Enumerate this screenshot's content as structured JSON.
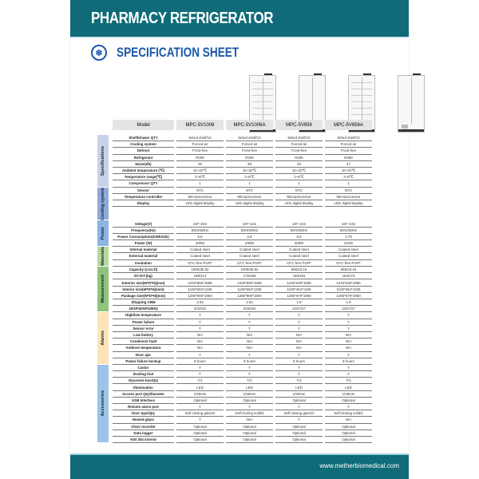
{
  "header": {
    "title": "PHARMACY REFRIGERATOR"
  },
  "subtitle": "SPECIFICATION SHEET",
  "colors": {
    "teal": "#0f6b78",
    "blue": "#1b58a8"
  },
  "product_images": [
    {
      "model": "MPC-5V1006",
      "door": "glass"
    },
    {
      "model": "MPC-5V1006A",
      "door": "solid"
    },
    {
      "model": "MPC-5V656",
      "door": "glass"
    },
    {
      "model": "MPC-5V656A",
      "door": "solid"
    }
  ],
  "table": {
    "model_label": "Model",
    "models": [
      "MPC-5V1006",
      "MPC-5V1006A",
      "MPC-5V656",
      "MPC-5V656A"
    ],
    "groups": [
      {
        "name": "Specifications",
        "color": "#c9d1ea",
        "rows": [
          [
            "Shelf/drawer QTY",
            "Wired shelf/10",
            "Wired shelf/10",
            "Wired shelf/10",
            "Wired shelf/10"
          ],
          [
            "Cooling system",
            "Forced air",
            "Forced air",
            "Forced air",
            "Forced air"
          ],
          [
            "Defrost",
            "Frost-free",
            "Frost-free",
            "Frost-free",
            "Frost-free"
          ],
          [
            "Refrigerant",
            "R290",
            "R290",
            "R290",
            "R290"
          ],
          [
            "Noise(db)",
            "49",
            "48",
            "48",
            "47"
          ],
          [
            "Ambient temperature (℃)",
            "10~32℃",
            "10~32℃",
            "10~32℃",
            "10~32℃"
          ],
          [
            "Temperature range(℃)",
            "2~8℃",
            "2~8℃",
            "2~8℃",
            "2~8℃"
          ],
          [
            "Compressor QTY",
            "1",
            "1",
            "1",
            "1"
          ]
        ]
      },
      {
        "name": "Cooling system",
        "color": "#8fa9d9",
        "rows": [
          [
            "Sensor",
            "NTC",
            "NTC",
            "NTC",
            "NTC"
          ],
          [
            "Temperature controller",
            "Microprocessor",
            "Microprocessor",
            "Microprocessor",
            "Microprocessor"
          ],
          [
            "Display",
            "LED digital display",
            "LED digital display",
            "LED digital display",
            "LED digital display"
          ]
        ]
      },
      {
        "name": "Power",
        "color": "#8db3e2",
        "rows": [
          [
            "Voltage(V)",
            "187~242",
            "187~242",
            "187~242",
            "187~242"
          ],
          [
            "Frequency(Hz)",
            "50Hz/60Hz",
            "50Hz/60Hz",
            "50Hz/60Hz",
            "50Hz/60Hz"
          ],
          [
            "Power Consumption(KWh/24h)",
            "5.6",
            "2.8",
            "5.8",
            "2.78"
          ],
          [
            "Power (W)",
            "400W",
            "330W",
            "400W",
            "310W"
          ]
        ]
      },
      {
        "name": "Materials",
        "color": "#b5d99c",
        "rows": [
          [
            "Internal material",
            "Coated steel",
            "Coated steel",
            "Coated steel",
            "Coated steel"
          ],
          [
            "External material",
            "Coated steel",
            "Coated steel",
            "Coated steel",
            "Coated steel"
          ],
          [
            "Insulation",
            "CFC-free PUFF",
            "CFC-free PUFF",
            "CFC-free PUFF",
            "CFC-free PUFF"
          ]
        ]
      },
      {
        "name": "Measurement",
        "color": "#8fc47c",
        "rows": [
          [
            "Capacity (L/cu.ft)",
            "1006/35.52",
            "1006/35.52",
            "656/23.16",
            "656/23.16"
          ],
          [
            "NT./GT.(kg)",
            "189/213",
            "175/198",
            "166/184",
            "154/170"
          ],
          [
            "Exterior size(W*D*H)(mm)",
            "1220*860*1885",
            "1220*860*1885",
            "1240*630*1895",
            "1240*630*1895"
          ],
          [
            "Interior size(W*D*H)(mm)",
            "1100*684*1325",
            "1100*684*1325",
            "1100*454*1325",
            "1100*454*1325"
          ],
          [
            "Package size(W*D*H)(mm)",
            "1280*900*1950",
            "1280*900*1950",
            "1280*670*1950",
            "1280*670*1950"
          ],
          [
            "Shipping CBM",
            "2.52",
            "2.52",
            "1.9",
            "1.9"
          ],
          [
            "20GP/40GP/40HQ",
            "8/18/18",
            "8/18/18",
            "12/27/27",
            "12/27/27"
          ]
        ]
      },
      {
        "name": "Alarms",
        "color": "#fde4b8",
        "rows": [
          [
            "High/low temperature",
            "Y",
            "Y",
            "Y",
            "Y"
          ],
          [
            "Power failure",
            "Y",
            "Y",
            "Y",
            "Y"
          ],
          [
            "Sensor error",
            "Y",
            "Y",
            "Y",
            "Y"
          ],
          [
            "Low battery",
            "N/A",
            "N/A",
            "N/A",
            "N/A"
          ],
          [
            "Condenser fault",
            "N/A",
            "N/A",
            "N/A",
            "N/A"
          ],
          [
            "Ambient temperature",
            "N/A",
            "N/A",
            "N/A",
            "N/A"
          ],
          [
            "Door ajar",
            "Y",
            "Y",
            "Y",
            "Y"
          ],
          [
            "Power failure backup",
            "8 hours",
            "8 hours",
            "8 hours",
            "8 hours"
          ]
        ]
      },
      {
        "name": "Accessories",
        "color": "#9dc3e6",
        "rows": [
          [
            "Castor",
            "Y",
            "Y",
            "Y",
            "Y"
          ],
          [
            "leveling foot",
            "Y",
            "Y",
            "Y",
            "Y"
          ],
          [
            "Glycerine box/Qty",
            "Y/1",
            "Y/1",
            "Y/1",
            "Y/1"
          ],
          [
            "Illumination",
            "LED",
            "LED",
            "LED",
            "LED"
          ],
          [
            "Access port Qty/diameter",
            "1/25mm",
            "1/25mm",
            "1/25mm",
            "1/25mm"
          ],
          [
            "USB Interface",
            "Optional",
            "Optional",
            "Optional",
            "Optional"
          ],
          [
            "Remote alarm port",
            "Y",
            "Y",
            "Y",
            "Y"
          ],
          [
            "Door type/Qty",
            "Self-closing glass/2",
            "Self-closing solid/2",
            "Self-closing glass/2",
            "Self-closing solid/2"
          ],
          [
            "Heated glass",
            "Y",
            "N/A",
            "Y",
            "N/A"
          ],
          [
            "Chart recorder",
            "Optional",
            "Optional",
            "Optional",
            "Optional"
          ],
          [
            "Data logger",
            "Optional",
            "Optional",
            "Optional",
            "Optional"
          ],
          [
            "AISI 304 interior",
            "Optional",
            "Optional",
            "Optional",
            "Optional"
          ]
        ]
      }
    ]
  },
  "footer": {
    "website": "www.metherbiomedical.com"
  }
}
